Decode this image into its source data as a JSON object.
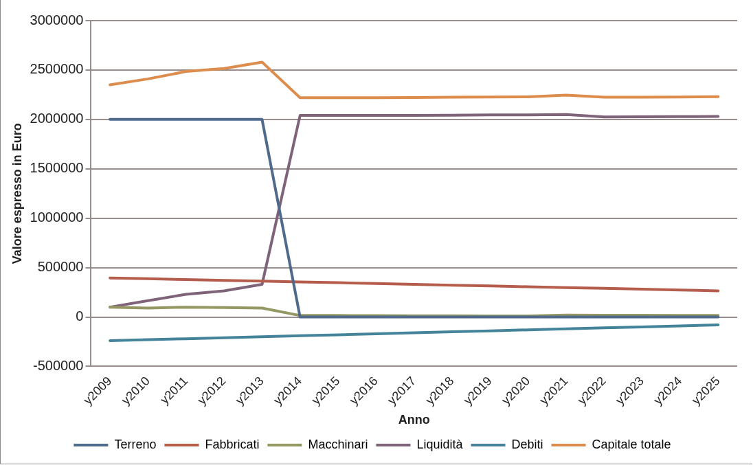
{
  "chart_data": {
    "type": "line",
    "xlabel": "Anno",
    "ylabel": "Valore espresso in Euro",
    "categories": [
      "y2009",
      "y2010",
      "y2011",
      "y2012",
      "y2013",
      "y2014",
      "y2015",
      "y2016",
      "y2017",
      "y2018",
      "y2019",
      "y2020",
      "y2021",
      "y2022",
      "y2023",
      "y2024",
      "y2025"
    ],
    "ylim": [
      -500000,
      3000000
    ],
    "yticks": [
      -500000,
      0,
      500000,
      1000000,
      1500000,
      2000000,
      2500000,
      3000000
    ],
    "grid": "y",
    "legend": "bottom",
    "marker": "none",
    "line_style": "solid",
    "series": [
      {
        "name": "Terreno",
        "color": "#4f6a8a",
        "values": [
          2000000,
          2000000,
          2000000,
          2000000,
          2000000,
          0,
          0,
          0,
          0,
          0,
          0,
          0,
          0,
          0,
          0,
          0,
          0
        ]
      },
      {
        "name": "Fabbricati",
        "color": "#b55d4c",
        "values": [
          395000,
          387000,
          379000,
          371000,
          363000,
          355000,
          347000,
          339000,
          330000,
          322000,
          314000,
          306000,
          298000,
          290000,
          282000,
          273000,
          265000
        ]
      },
      {
        "name": "Macchinari",
        "color": "#959863",
        "values": [
          100000,
          90000,
          100000,
          95000,
          90000,
          15000,
          15000,
          14000,
          13000,
          12000,
          11000,
          10000,
          20000,
          18000,
          17000,
          16000,
          15000
        ]
      },
      {
        "name": "Liquidità",
        "color": "#7f6479",
        "values": [
          100000,
          165000,
          230000,
          265000,
          330000,
          2040000,
          2040000,
          2040000,
          2040000,
          2042000,
          2045000,
          2045000,
          2050000,
          2025000,
          2027000,
          2028000,
          2030000
        ]
      },
      {
        "name": "Debiti",
        "color": "#45839a",
        "values": [
          -240000,
          -230000,
          -220000,
          -210000,
          -200000,
          -190000,
          -180000,
          -170000,
          -160000,
          -150000,
          -140000,
          -130000,
          -120000,
          -110000,
          -100000,
          -90000,
          -80000
        ]
      },
      {
        "name": "Capitale totale",
        "color": "#dc8d4d",
        "values": [
          2350000,
          2410000,
          2485000,
          2515000,
          2580000,
          2220000,
          2220000,
          2220000,
          2222000,
          2224000,
          2226000,
          2228000,
          2245000,
          2225000,
          2225000,
          2227000,
          2230000
        ]
      }
    ]
  }
}
